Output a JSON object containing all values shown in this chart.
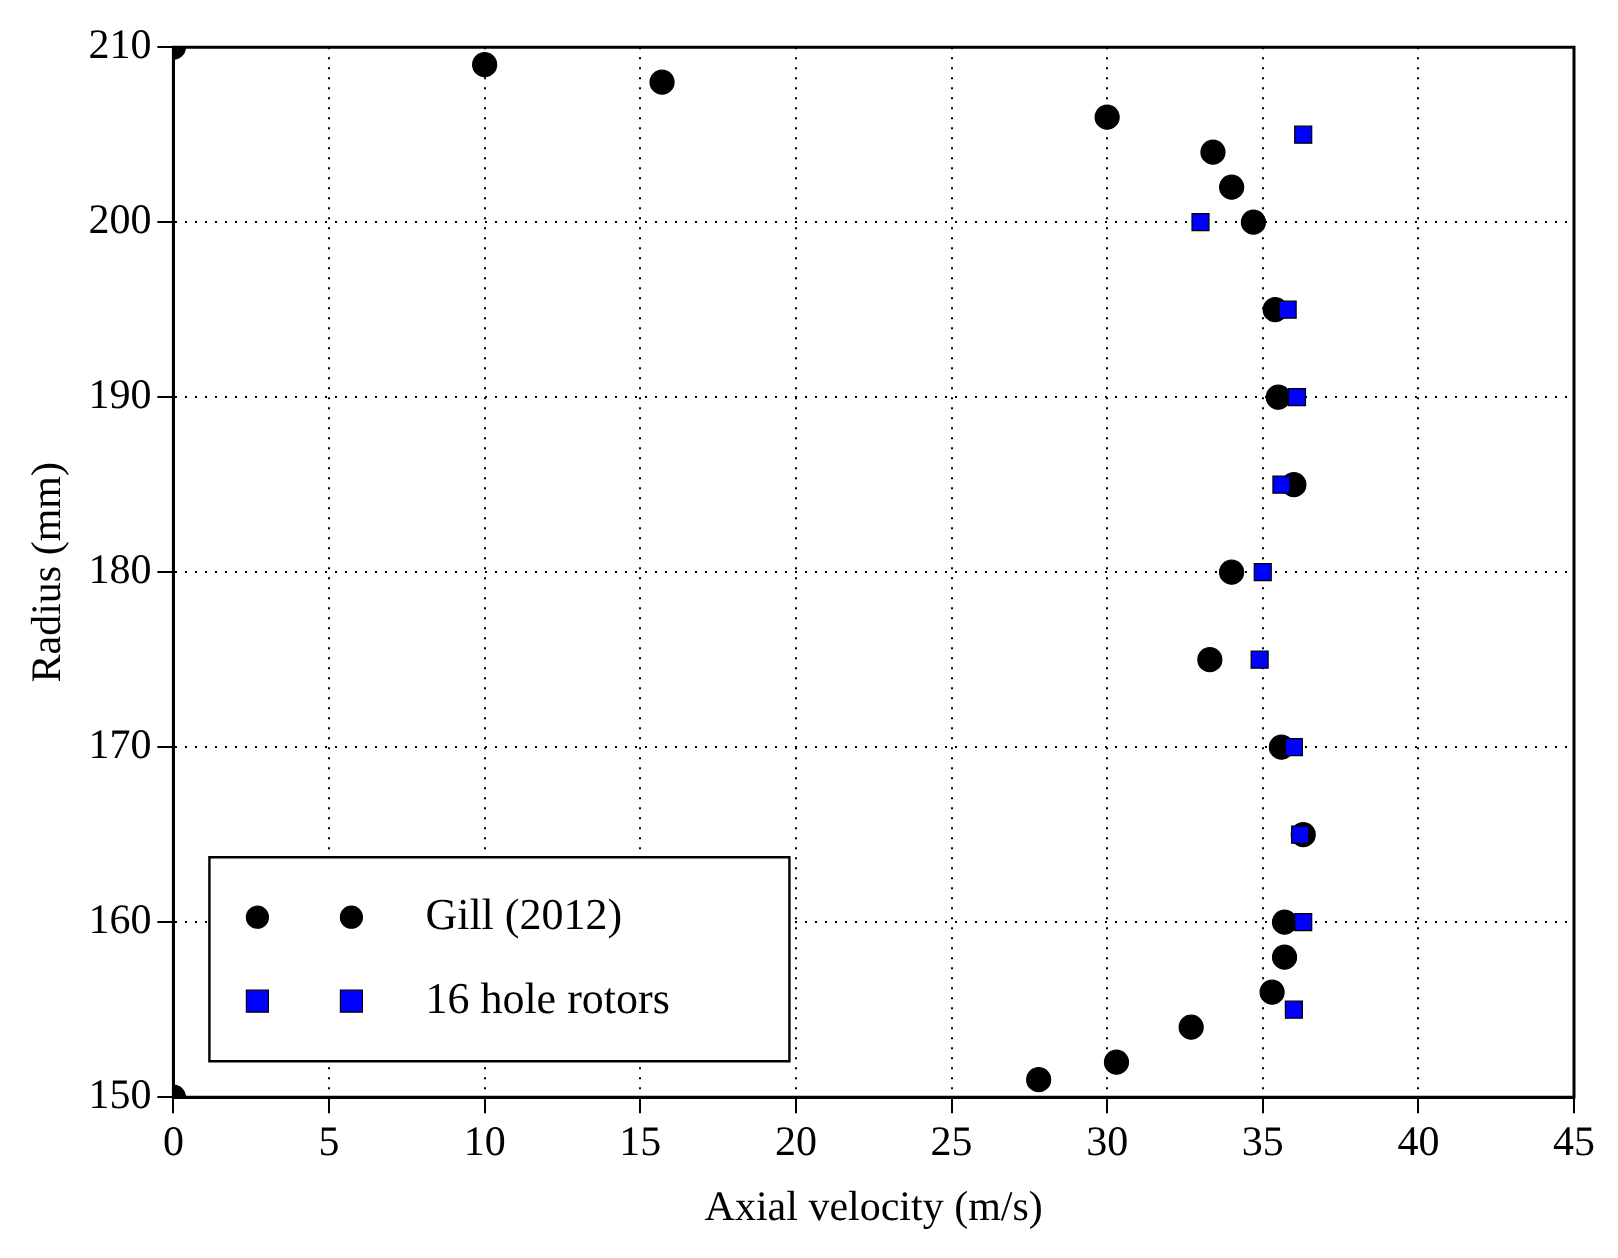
{
  "chart_data": {
    "type": "scatter",
    "xlabel": "Axial velocity (m/s)",
    "ylabel": "Radius (mm)",
    "xlim": [
      0,
      45
    ],
    "xticks": [
      0,
      5,
      10,
      15,
      20,
      25,
      30,
      35,
      40,
      45
    ],
    "ylim": [
      150,
      210
    ],
    "yticks": [
      150,
      160,
      170,
      180,
      190,
      200,
      210
    ],
    "grid": true,
    "legend": "bottom left",
    "series": [
      {
        "name": "Gill (2012)",
        "color": "#000000",
        "marker": "circle",
        "x": [
          0,
          10,
          15.7,
          30,
          33.4,
          34,
          34.7,
          35.4,
          35.5,
          36,
          34,
          33.3,
          35.6,
          36.3,
          35.7,
          35.7,
          35.3,
          32.7,
          30.3,
          27.8,
          0
        ],
        "values": [
          210,
          209,
          208,
          206,
          204,
          202,
          200,
          195,
          190,
          185,
          180,
          175,
          170,
          165,
          160,
          158,
          156,
          154,
          152,
          151,
          150
        ]
      },
      {
        "name": "16 hole rotors",
        "color": "#0000ff",
        "marker": "square",
        "x": [
          36.3,
          33,
          35.8,
          36.1,
          35.6,
          35,
          34.9,
          36,
          36.2,
          36.3,
          36
        ],
        "values": [
          205,
          200,
          195,
          190,
          185,
          180,
          175,
          170,
          165,
          160,
          155
        ]
      }
    ]
  }
}
